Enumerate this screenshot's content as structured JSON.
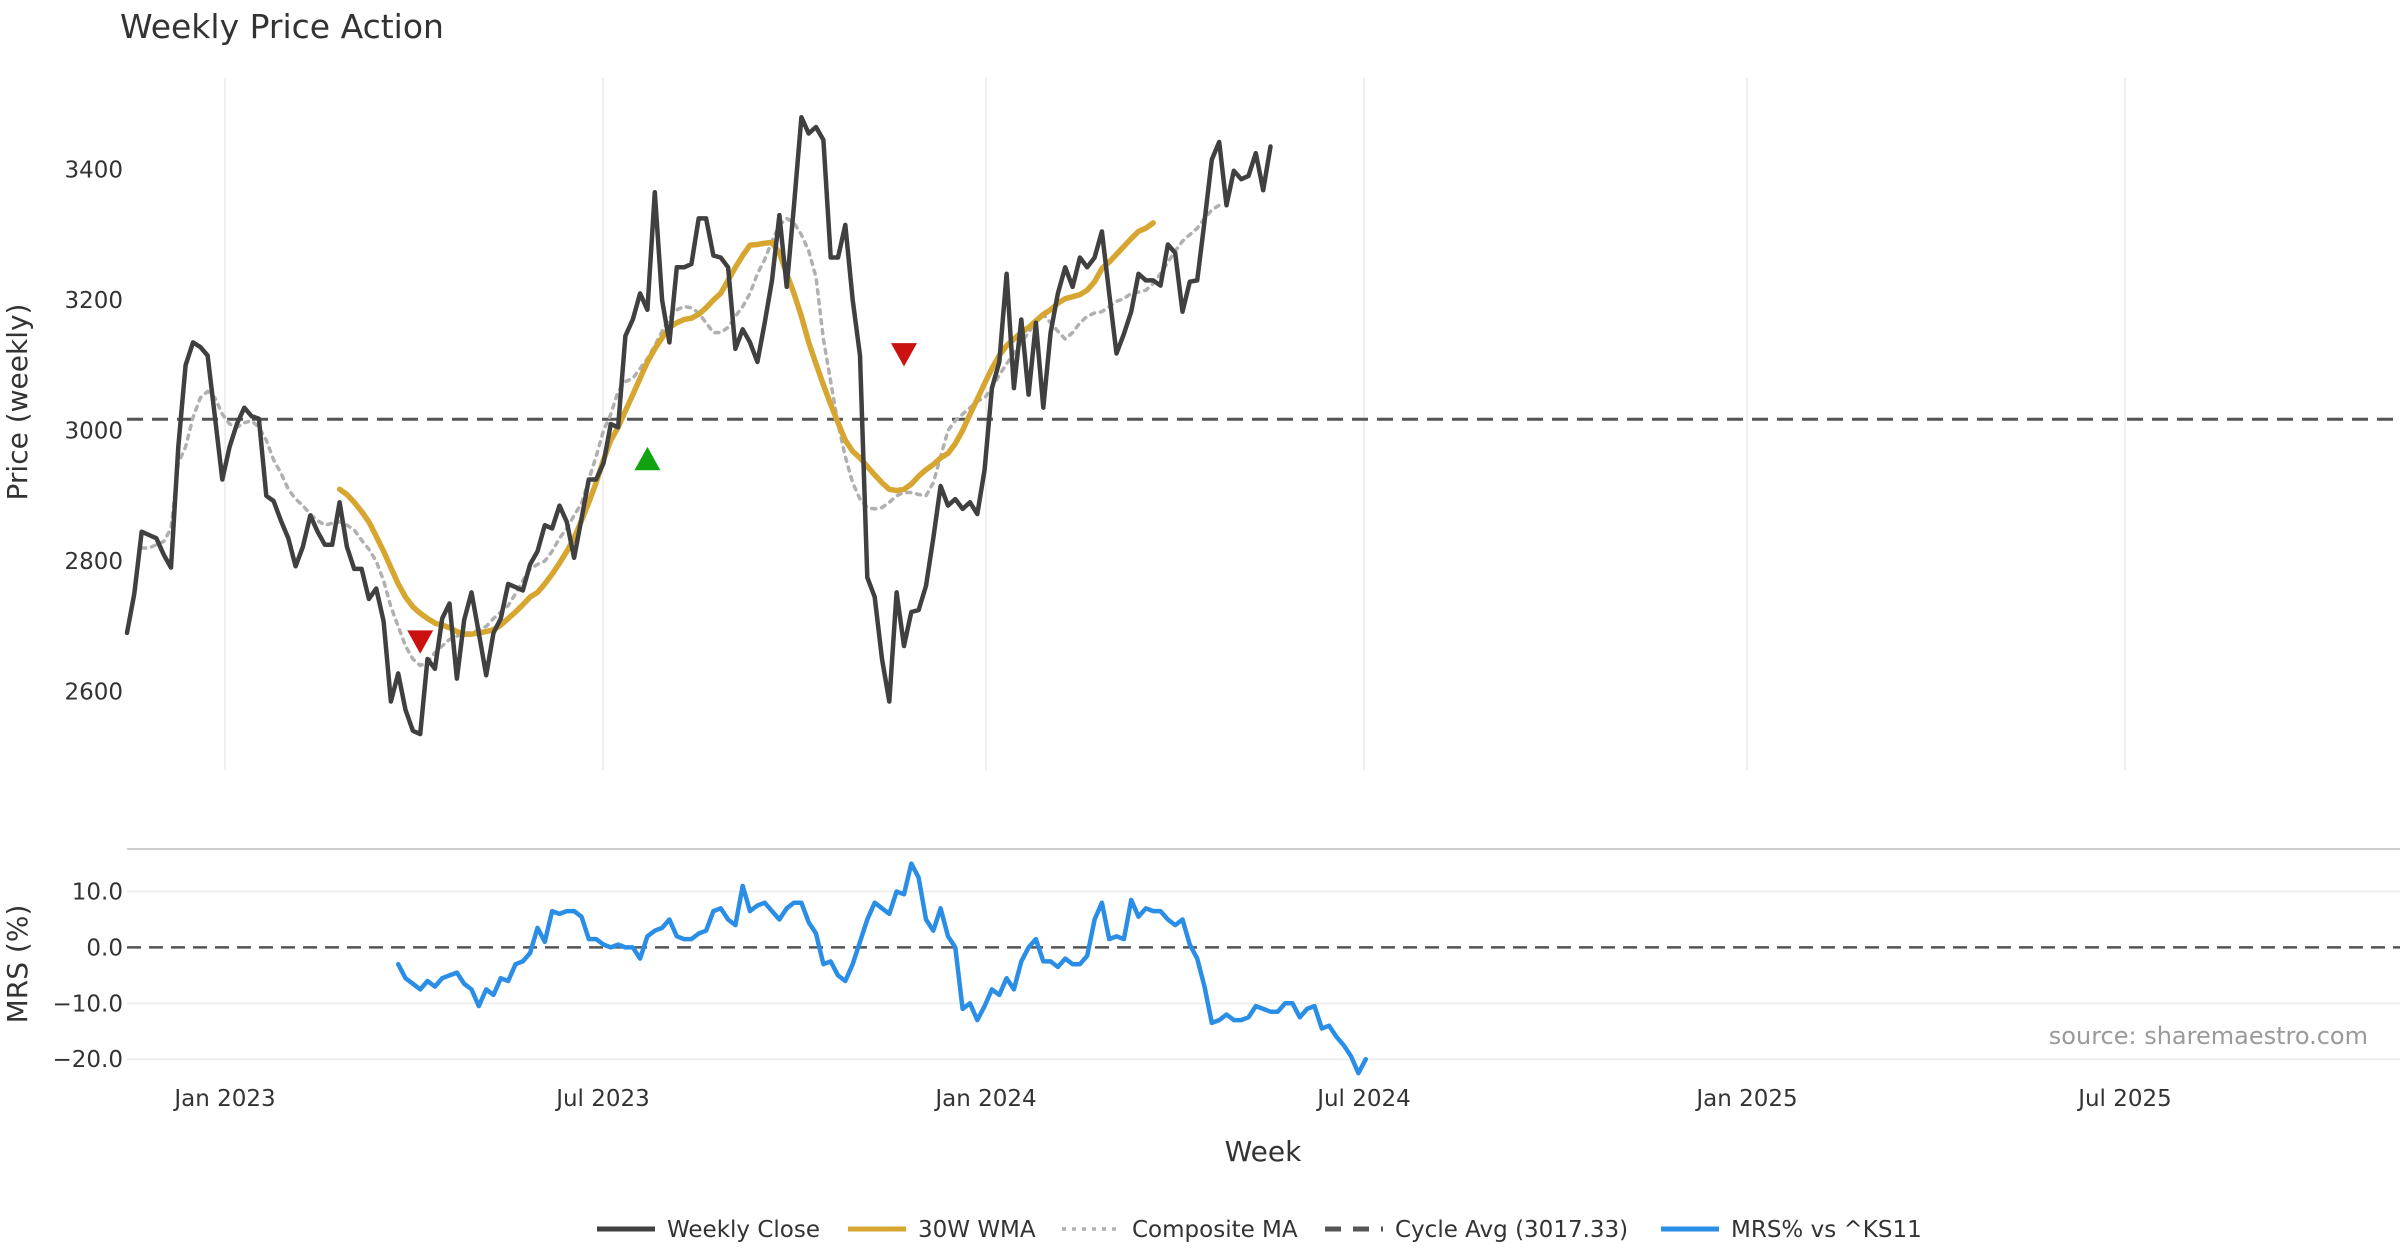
{
  "chart_data": {
    "type": "line",
    "title": "Weekly Price Action",
    "xlabel": "Week",
    "x_ticks": [
      "Jan 2023",
      "Jul 2023",
      "Jan 2024",
      "Jul 2024",
      "Jan 2025",
      "Jul 2025"
    ],
    "price_panel": {
      "ylabel": "Price (weekly)",
      "ylim": [
        2480,
        3540
      ],
      "y_ticks": [
        "2600",
        "2800",
        "3000",
        "3200",
        "3400"
      ],
      "y_tick_values": [
        2600,
        2800,
        3000,
        3200,
        3400
      ],
      "cycle_avg": 3017.33,
      "series": [
        {
          "name": "Weekly Close",
          "color": "#404040",
          "style": "solid",
          "start_week": 0,
          "values": [
            2690,
            2750,
            2845,
            2840,
            2835,
            2810,
            2790,
            2975,
            3100,
            3135,
            3128,
            3115,
            3020,
            2925,
            2975,
            3010,
            3035,
            3022,
            3018,
            2900,
            2892,
            2862,
            2835,
            2792,
            2822,
            2870,
            2845,
            2825,
            2825,
            2890,
            2822,
            2788,
            2788,
            2742,
            2758,
            2708,
            2585,
            2628,
            2572,
            2540,
            2535,
            2650,
            2635,
            2712,
            2735,
            2620,
            2710,
            2752,
            2690,
            2625,
            2690,
            2712,
            2765,
            2760,
            2755,
            2795,
            2815,
            2855,
            2850,
            2885,
            2860,
            2805,
            2865,
            2925,
            2925,
            2950,
            3010,
            3005,
            3145,
            3170,
            3210,
            3185,
            3365,
            3200,
            3135,
            3250,
            3250,
            3255,
            3325,
            3325,
            3268,
            3265,
            3250,
            3125,
            3155,
            3135,
            3105,
            3165,
            3230,
            3330,
            3220,
            3345,
            3480,
            3455,
            3465,
            3445,
            3265,
            3265,
            3315,
            3200,
            3115,
            2775,
            2745,
            2650,
            2585,
            2752,
            2670,
            2722,
            2725,
            2762,
            2835,
            2915,
            2885,
            2895,
            2880,
            2890,
            2872,
            2940,
            3065,
            3105,
            3240,
            3065,
            3170,
            3055,
            3165,
            3035,
            3150,
            3210,
            3250,
            3220,
            3265,
            3250,
            3265,
            3305,
            3210,
            3118,
            3148,
            3182,
            3240,
            3230,
            3230,
            3222,
            3285,
            3272,
            3182,
            3228,
            3230,
            3320,
            3415,
            3442,
            3345,
            3398,
            3385,
            3390,
            3425,
            3368,
            3435
          ]
        },
        {
          "name": "30W WMA",
          "color": "#d6a630",
          "style": "solid",
          "start_week": 29,
          "values": [
            2910,
            2902,
            2890,
            2876,
            2860,
            2838,
            2815,
            2790,
            2765,
            2745,
            2730,
            2720,
            2712,
            2705,
            2702,
            2698,
            2692,
            2688,
            2688,
            2690,
            2692,
            2695,
            2702,
            2712,
            2722,
            2733,
            2745,
            2752,
            2765,
            2780,
            2797,
            2815,
            2835,
            2862,
            2890,
            2920,
            2955,
            2985,
            3005,
            3030,
            3055,
            3080,
            3105,
            3125,
            3142,
            3158,
            3165,
            3170,
            3172,
            3178,
            3188,
            3200,
            3210,
            3230,
            3250,
            3268,
            3284,
            3285,
            3287,
            3288,
            3272,
            3240,
            3210,
            3175,
            3135,
            3102,
            3070,
            3040,
            3012,
            2985,
            2968,
            2958,
            2945,
            2932,
            2920,
            2910,
            2908,
            2910,
            2918,
            2930,
            2940,
            2948,
            2958,
            2965,
            2980,
            3000,
            3025,
            3048,
            3072,
            3095,
            3115,
            3130,
            3140,
            3150,
            3158,
            3168,
            3178,
            3185,
            3195,
            3202,
            3205,
            3208,
            3215,
            3228,
            3248,
            3258,
            3270,
            3282,
            3294,
            3305,
            3310,
            3318
          ]
        },
        {
          "name": "Composite MA",
          "color": "#b0b0b0",
          "style": "dotted",
          "start_week": 2,
          "values": [
            2820,
            2820,
            2825,
            2830,
            2850,
            2950,
            2975,
            3020,
            3050,
            3060,
            3050,
            3025,
            3010,
            3005,
            3012,
            3015,
            3005,
            2985,
            2955,
            2935,
            2910,
            2895,
            2885,
            2872,
            2862,
            2855,
            2858,
            2860,
            2855,
            2848,
            2832,
            2818,
            2800,
            2770,
            2730,
            2700,
            2670,
            2650,
            2640,
            2645,
            2660,
            2670,
            2680,
            2685,
            2690,
            2690,
            2695,
            2700,
            2712,
            2722,
            2732,
            2750,
            2770,
            2788,
            2795,
            2800,
            2815,
            2835,
            2850,
            2870,
            2888,
            2925,
            2960,
            3000,
            3025,
            3060,
            3075,
            3080,
            3095,
            3110,
            3130,
            3152,
            3172,
            3185,
            3190,
            3188,
            3180,
            3165,
            3150,
            3150,
            3158,
            3175,
            3190,
            3210,
            3240,
            3262,
            3290,
            3315,
            3325,
            3318,
            3300,
            3275,
            3235,
            3140,
            3075,
            3010,
            2960,
            2920,
            2895,
            2882,
            2880,
            2882,
            2890,
            2900,
            2905,
            2905,
            2902,
            2900,
            2920,
            2960,
            3000,
            3015,
            3025,
            3035,
            3045,
            3050,
            3065,
            3085,
            3102,
            3118,
            3135,
            3150,
            3168,
            3178,
            3165,
            3152,
            3140,
            3150,
            3165,
            3175,
            3180,
            3182,
            3190,
            3198,
            3202,
            3210,
            3212,
            3215,
            3225,
            3240,
            3258,
            3275,
            3290,
            3300,
            3310,
            3325,
            3338,
            3345
          ]
        }
      ]
    },
    "mrs_panel": {
      "ylabel": "MRS (%)",
      "ylim": [
        -23,
        16
      ],
      "y_ticks": [
        "−20.0",
        "−10.0",
        "0.0",
        "10.0"
      ],
      "y_tick_values": [
        -20,
        -10,
        0,
        10
      ],
      "series": {
        "name": "MRS% vs ^KS11",
        "color": "#2a8ee6",
        "start_week": 37,
        "values": [
          -3,
          -5.5,
          -6.5,
          -7.5,
          -6,
          -7,
          -5.5,
          -5,
          -4.5,
          -6.5,
          -7.5,
          -10.5,
          -7.5,
          -8.5,
          -5.5,
          -6,
          -3,
          -2.5,
          -1,
          3.5,
          1,
          6.5,
          6,
          6.5,
          6.5,
          5.5,
          1.5,
          1.5,
          0.5,
          0,
          0.5,
          0,
          0,
          -2,
          2,
          3,
          3.5,
          5,
          2,
          1.5,
          1.5,
          2.5,
          3,
          6.5,
          7,
          5,
          4,
          11,
          6.5,
          7.5,
          8,
          6.5,
          5,
          7,
          8,
          8,
          4.5,
          2.5,
          -3,
          -2.5,
          -5,
          -6,
          -3,
          1,
          5,
          8,
          7,
          6,
          10,
          9.5,
          15,
          12.5,
          5,
          3,
          7,
          2,
          0,
          -11,
          -10,
          -13,
          -10.5,
          -7.5,
          -8.5,
          -5.5,
          -7.5,
          -2.5,
          0,
          1.5,
          -2.5,
          -2.5,
          -3.5,
          -2,
          -3,
          -3,
          -1.5,
          5,
          8,
          1.5,
          2,
          1.5,
          8.5,
          5.5,
          7,
          6.5,
          6.5,
          5,
          4,
          5,
          0.5,
          -2,
          -7,
          -13.5,
          -13,
          -12,
          -13,
          -13,
          -12.5,
          -10.5,
          -11,
          -11.5,
          -11.5,
          -10,
          -10,
          -12.5,
          -11,
          -10.5,
          -14.5,
          -14,
          -16,
          -17.5,
          -19.5,
          -22.5,
          -20
        ]
      }
    },
    "signals": [
      {
        "week": 40,
        "value": 2678,
        "type": "sell",
        "color": "#cc1111"
      },
      {
        "week": 71,
        "value": 2955,
        "type": "buy",
        "color": "#12a312"
      },
      {
        "week": 106,
        "value": 3118,
        "type": "sell",
        "color": "#cc1111"
      }
    ],
    "legend": [
      {
        "label": "Weekly Close",
        "color": "#404040",
        "style": "solid"
      },
      {
        "label": "30W WMA",
        "color": "#d6a630",
        "style": "solid"
      },
      {
        "label": "Composite MA",
        "color": "#b0b0b0",
        "style": "dotted"
      },
      {
        "label": "Cycle Avg (3017.33)",
        "color": "#555555",
        "style": "dashed"
      },
      {
        "label": "MRS% vs ^KS11",
        "color": "#2a8ee6",
        "style": "solid"
      }
    ],
    "source_text": "source: sharemaestro.com",
    "grid": true,
    "legend_position": "bottom-center"
  }
}
